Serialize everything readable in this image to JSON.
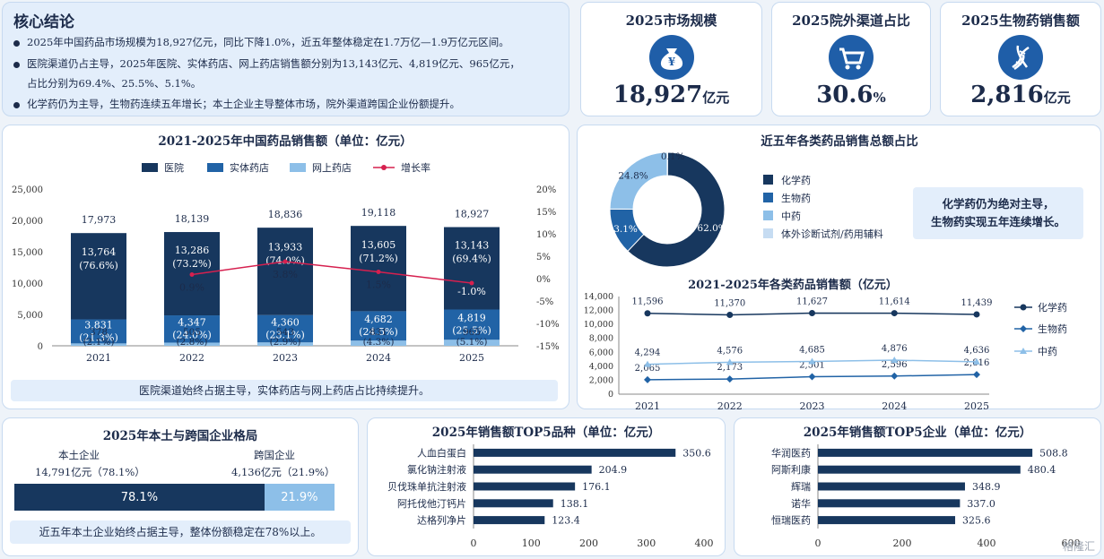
{
  "summary": {
    "title": "核心结论",
    "b1": "2025年中国药品市场规模为18,927亿元，同比下降1.0%，近五年整体稳定在1.7万亿—1.9万亿元区间。",
    "b2a": "医院渠道仍占主导，2025年医院、实体药店、网上药店销售额分别为13,143亿元、4,819亿元、965亿元，",
    "b2b": "占比分别为69.4%、25.5%、5.1%。",
    "b3": "化学药仍为主导，生物药连续五年增长；本土企业主导整体市场，院外渠道跨国企业份额提升。"
  },
  "kpis": [
    {
      "title": "2025市场规模",
      "value": "18,927",
      "unit": "亿元",
      "icon": "money-bag-icon"
    },
    {
      "title": "2025院外渠道占比",
      "value": "30.6",
      "unit": "%",
      "icon": "shopping-cart-icon"
    },
    {
      "title": "2025生物药销售额",
      "value": "2,816",
      "unit": "亿元",
      "icon": "dna-icon"
    }
  ],
  "colors": {
    "hospital": "#17375e",
    "retail": "#2163a6",
    "online": "#8dbfe8",
    "growth": "#d6204f",
    "panel_border": "#c7daf0"
  },
  "chart_data": [
    {
      "type": "bar",
      "title": "2021-2025年中国药品销售额（单位：亿元）",
      "categories": [
        "2021",
        "2022",
        "2023",
        "2024",
        "2025"
      ],
      "series": [
        {
          "name": "医院",
          "values": [
            13764,
            13286,
            13933,
            13605,
            13143
          ],
          "share": [
            "(76.6%)",
            "(73.2%)",
            "(74.0%)",
            "(71.2%)",
            "(69.4%)"
          ]
        },
        {
          "name": "实体药店",
          "values": [
            3831,
            4347,
            4360,
            4682,
            4819
          ],
          "share": [
            "(21.3%)",
            "(24.0%)",
            "(23.1%)",
            "(24.5%)",
            "(25.5%)"
          ]
        },
        {
          "name": "网上药店",
          "values": [
            378,
            505,
            543,
            831,
            965
          ],
          "share": [
            "(2.1%)",
            "(2.8%)",
            "(2.9%)",
            "(4.3%)",
            "(5.1%)"
          ]
        }
      ],
      "totals": [
        17973,
        18139,
        18836,
        19118,
        18927
      ],
      "growth": {
        "name": "增长率",
        "values": [
          null,
          0.9,
          3.8,
          1.5,
          -1.0
        ]
      },
      "ylim": [
        0,
        25000
      ],
      "yticks": [
        "0",
        "5,000",
        "10,000",
        "15,000",
        "20,000",
        "25,000"
      ],
      "y2lim": [
        -15,
        20
      ],
      "y2ticks": [
        "-15%",
        "-10%",
        "-5%",
        "0%",
        "5%",
        "10%",
        "15%",
        "20%"
      ],
      "legend": "top",
      "note": "医院渠道始终占据主导，实体药店与网上药店占比持续提升。"
    },
    {
      "type": "pie",
      "title": "近五年各类药品销售总额占比",
      "labels": [
        "化学药",
        "生物药",
        "中药",
        "体外诊断试剂/药用辅料"
      ],
      "values": [
        62.0,
        13.1,
        24.8,
        0.1
      ],
      "note1": "化学药仍为绝对主导，",
      "note2": "生物药实现五年连续增长。"
    },
    {
      "type": "line",
      "title": "2021-2025年各类药品销售额（亿元）",
      "x": [
        "2021",
        "2022",
        "2023",
        "2024",
        "2025"
      ],
      "series": [
        {
          "name": "化学药",
          "values": [
            11596,
            11370,
            11627,
            11614,
            11439
          ]
        },
        {
          "name": "生物药",
          "values": [
            2065,
            2173,
            2501,
            2596,
            2816
          ]
        },
        {
          "name": "中药",
          "values": [
            4294,
            4576,
            4685,
            4876,
            4636
          ]
        }
      ],
      "ylim": [
        0,
        14000
      ]
    },
    {
      "type": "bar",
      "title": "2025年本土与跨国企业格局",
      "labels": [
        "本土企业",
        "跨国企业"
      ],
      "values": [
        "14,791亿元（78.1%）",
        "4,136亿元（21.9%）"
      ],
      "shares": [
        78.1,
        21.9
      ],
      "note": "近五年本土企业始终占据主导，整体份额稳定在78%以上。"
    },
    {
      "type": "bar",
      "title": "2025年销售额TOP5品种（单位：亿元）",
      "categories": [
        "人血白蛋白",
        "氯化钠注射液",
        "贝伐珠单抗注射液",
        "阿托伐他汀钙片",
        "达格列净片"
      ],
      "values": [
        350.6,
        204.9,
        176.1,
        138.1,
        123.4
      ],
      "xlim": [
        0,
        400
      ]
    },
    {
      "type": "bar",
      "title": "2025年销售额TOP5企业（单位：亿元）",
      "categories": [
        "华润医药",
        "阿斯利康",
        "辉瑞",
        "诺华",
        "恒瑞医药"
      ],
      "values": [
        508.8,
        480.4,
        348.9,
        337.0,
        325.6
      ],
      "xlim": [
        0,
        600
      ]
    }
  ],
  "watermark": "格隆汇"
}
